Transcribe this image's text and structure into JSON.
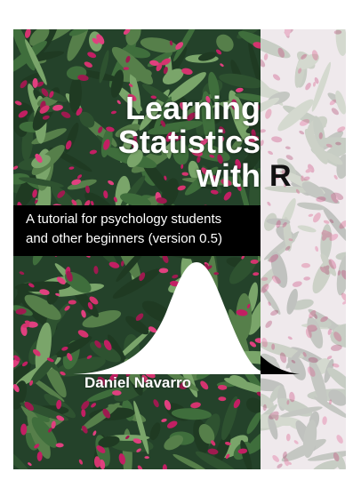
{
  "cover": {
    "title_line_1": "Learning",
    "title_line_2": "Statistics",
    "title_line_3": "with",
    "title_r": "R",
    "subtitle_line_1": "A tutorial for psychology students",
    "subtitle_line_2": "and other beginners (version 0.5)",
    "author": "Daniel Navarro"
  },
  "colors": {
    "foliage_dark": "#1f3a22",
    "foliage_mid": "#3f6e3c",
    "foliage_light": "#7aa56a",
    "flower": "#c21f63",
    "band": "#000000",
    "faded_panel": "#f1ecee"
  }
}
